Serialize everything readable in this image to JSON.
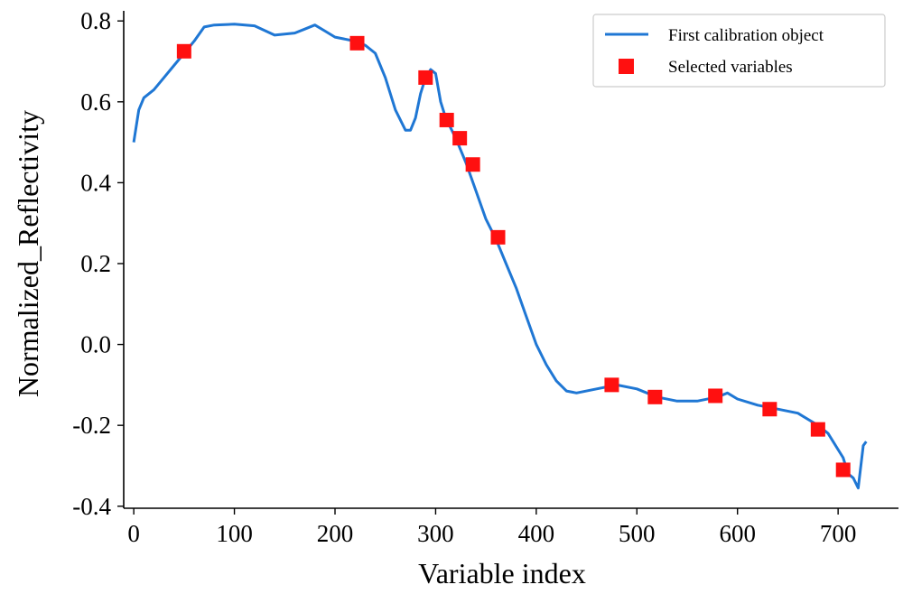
{
  "chart_data": {
    "type": "line",
    "title": "",
    "xlabel": "Variable index",
    "ylabel": "Normalized_Reflectivity",
    "xlim": [
      -10,
      760
    ],
    "ylim": [
      -0.405,
      0.825
    ],
    "xticks": [
      0,
      100,
      200,
      300,
      400,
      500,
      600,
      700
    ],
    "yticks": [
      0.8,
      0.6,
      0.4,
      0.2,
      0.0,
      -0.2,
      -0.4
    ],
    "ytick_labels": [
      "0.8",
      "0.6",
      "0.4",
      "0.2",
      "0.0",
      "-0.2",
      "-0.4"
    ],
    "grid": false,
    "legend_position": "top-right",
    "series": [
      {
        "name": "First calibration object",
        "kind": "line",
        "color": "#1f77d4",
        "x": [
          0,
          5,
          10,
          20,
          30,
          40,
          50,
          60,
          70,
          80,
          100,
          120,
          140,
          160,
          170,
          180,
          190,
          200,
          220,
          230,
          240,
          250,
          260,
          270,
          275,
          280,
          285,
          290,
          295,
          300,
          305,
          310,
          320,
          330,
          340,
          350,
          360,
          370,
          380,
          390,
          400,
          410,
          420,
          430,
          440,
          460,
          480,
          500,
          520,
          540,
          560,
          580,
          590,
          600,
          620,
          640,
          660,
          680,
          690,
          700,
          705,
          710,
          715,
          720,
          725,
          728
        ],
        "y": [
          0.5,
          0.58,
          0.61,
          0.63,
          0.66,
          0.69,
          0.72,
          0.75,
          0.785,
          0.79,
          0.792,
          0.788,
          0.765,
          0.77,
          0.78,
          0.79,
          0.775,
          0.76,
          0.75,
          0.74,
          0.72,
          0.66,
          0.58,
          0.53,
          0.53,
          0.56,
          0.62,
          0.66,
          0.68,
          0.67,
          0.6,
          0.56,
          0.51,
          0.45,
          0.38,
          0.31,
          0.26,
          0.2,
          0.14,
          0.07,
          0.0,
          -0.05,
          -0.09,
          -0.115,
          -0.12,
          -0.11,
          -0.1,
          -0.11,
          -0.13,
          -0.14,
          -0.14,
          -0.13,
          -0.12,
          -0.135,
          -0.15,
          -0.16,
          -0.17,
          -0.2,
          -0.22,
          -0.26,
          -0.28,
          -0.32,
          -0.33,
          -0.355,
          -0.25,
          -0.24
        ]
      },
      {
        "name": "Selected variables",
        "kind": "scatter",
        "color": "#ff1010",
        "x": [
          50,
          222,
          290,
          311,
          324,
          337,
          362,
          475,
          518,
          578,
          632,
          680,
          705
        ],
        "y": [
          0.725,
          0.745,
          0.66,
          0.555,
          0.51,
          0.445,
          0.265,
          -0.1,
          -0.13,
          -0.127,
          -0.16,
          -0.21,
          -0.31
        ]
      }
    ]
  }
}
